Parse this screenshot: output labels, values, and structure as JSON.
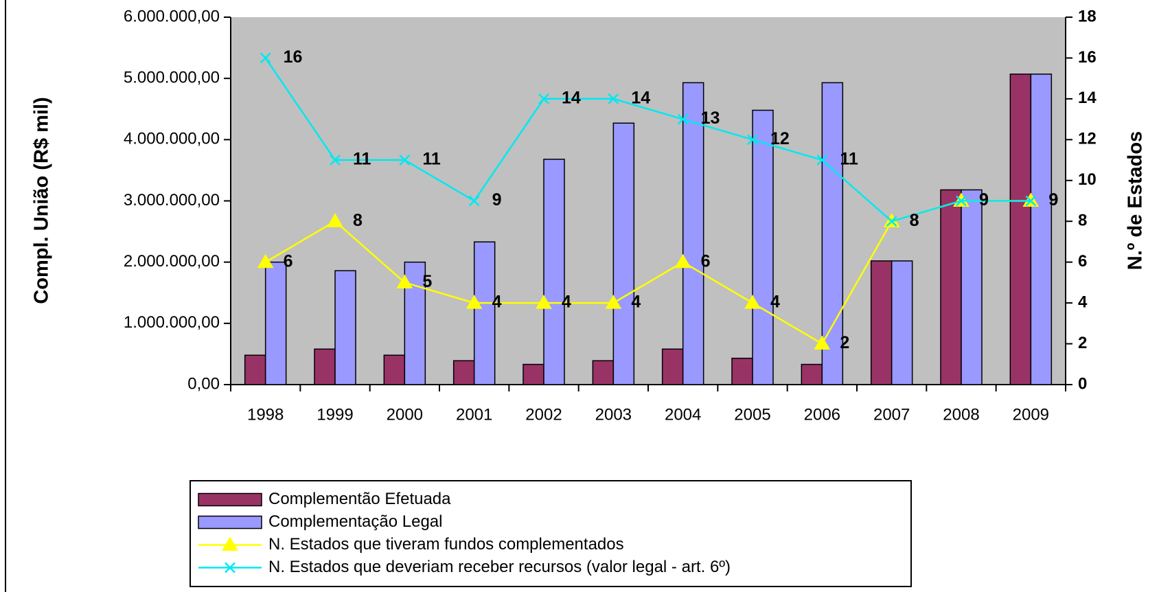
{
  "chart_data": {
    "type": "bar",
    "categories": [
      "1998",
      "1999",
      "2000",
      "2001",
      "2002",
      "2003",
      "2004",
      "2005",
      "2006",
      "2007",
      "2008",
      "2009"
    ],
    "y_label": "Compl. União (R$ mil)",
    "y2_label": "N.º de Estados",
    "ylim": [
      0,
      6000000
    ],
    "yticks": [
      {
        "value": 0,
        "label": "0,00"
      },
      {
        "value": 1000000,
        "label": "1.000.000,00"
      },
      {
        "value": 2000000,
        "label": "2.000.000,00"
      },
      {
        "value": 3000000,
        "label": "3.000.000,00"
      },
      {
        "value": 4000000,
        "label": "4.000.000,00"
      },
      {
        "value": 5000000,
        "label": "5.000.000,00"
      },
      {
        "value": 6000000,
        "label": "6.000.000,00"
      }
    ],
    "y2lim": [
      0,
      18
    ],
    "y2ticks": [
      0,
      2,
      4,
      6,
      8,
      10,
      12,
      14,
      16,
      18
    ],
    "plot_background": "#c0c0c0",
    "series": [
      {
        "name": "Complementão Efetuada",
        "type": "bar",
        "color": "#993366",
        "values": [
          480000,
          580000,
          480000,
          390000,
          330000,
          390000,
          580000,
          430000,
          330000,
          2020000,
          3180000,
          5070000
        ]
      },
      {
        "name": "Complementação Legal",
        "type": "bar",
        "color": "#9999ff",
        "values": [
          2000000,
          1860000,
          2000000,
          2330000,
          3680000,
          4270000,
          4930000,
          4480000,
          4930000,
          2020000,
          3180000,
          5070000
        ]
      },
      {
        "name": "N. Estados que tiveram fundos complementados",
        "type": "line",
        "axis": "y2",
        "marker": "triangle",
        "color": "#ffff00",
        "values": [
          6,
          8,
          5,
          4,
          4,
          4,
          6,
          4,
          2,
          8,
          9,
          9
        ]
      },
      {
        "name": "N. Estados que deveriam receber recursos (valor legal - art. 6º)",
        "type": "line",
        "axis": "y2",
        "marker": "x",
        "color": "#00e8f0",
        "values": [
          16,
          11,
          11,
          9,
          14,
          14,
          13,
          12,
          11,
          8,
          9,
          9
        ]
      }
    ]
  }
}
